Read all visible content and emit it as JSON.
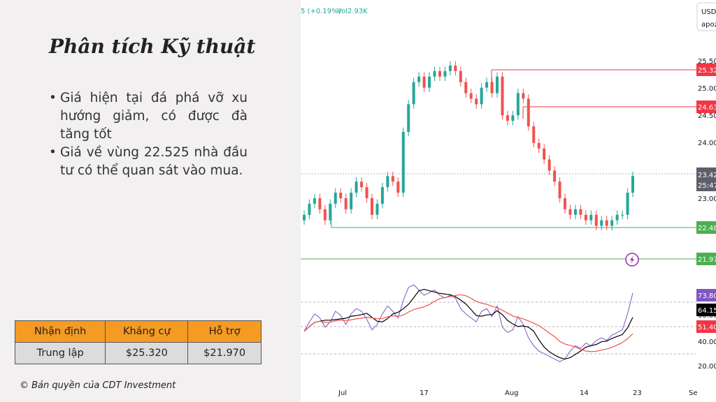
{
  "slide": {
    "title": "Phân tích Kỹ thuật",
    "bullets": [
      "Giá hiện tại đá phá vỡ xu hướng giảm, có được đà tăng tốt",
      "Giá về vùng 22.525 nhà đầu tư có thể quan sát vào mua."
    ],
    "copyright": "© Bản quyền của CDT Investment"
  },
  "summary_table": {
    "headers": [
      "Nhận định",
      "Kháng cự",
      "Hỗ trợ"
    ],
    "row": [
      "Trung lập",
      "$25.320",
      "$21.970"
    ]
  },
  "chart_header": {
    "change": "5 (+0.19%)",
    "volume": "Vol2.93K",
    "currency": "USD",
    "currency_sub": "apoz"
  },
  "colors": {
    "up": "#26a69a",
    "down": "#ef5350",
    "resistance_line": "#f23645",
    "support_line": "#4caf50",
    "rsi_line": "#7e57c2",
    "rsi_ma": "#000000",
    "rsi_ma_slow": "#ef5350",
    "header_bg": "#f59a23"
  },
  "chart_data": {
    "type": "line",
    "price_axis_ticks": [
      "25.50",
      "25.00",
      "24.50",
      "24.00",
      "23.00"
    ],
    "price_levels": [
      {
        "label": "25.32",
        "value": 25.32,
        "kind": "resistance"
      },
      {
        "label": "24.63",
        "value": 24.63,
        "kind": "resistance"
      },
      {
        "label": "23.42",
        "value": 23.42,
        "kind": "last"
      },
      {
        "label": "25:47",
        "value": 23.28,
        "kind": "countdown"
      },
      {
        "label": "22.48",
        "value": 22.48,
        "kind": "support"
      },
      {
        "label": "21.97",
        "value": 21.97,
        "kind": "support"
      }
    ],
    "rsi_axis_ticks": [
      "60.00",
      "40.00",
      "20.00"
    ],
    "rsi_levels": [
      {
        "label": "73.80",
        "value": 73.8,
        "kind": "rsi"
      },
      {
        "label": "64.15",
        "value": 64.15,
        "kind": "ma"
      },
      {
        "label": "51.40",
        "value": 51.4,
        "kind": "ma_slow"
      }
    ],
    "x_ticks": [
      "Jul",
      "17",
      "Aug",
      "14",
      "23",
      "Se"
    ],
    "price_series": [
      22.7,
      22.9,
      23.0,
      22.8,
      22.6,
      22.9,
      23.1,
      23.0,
      22.8,
      23.1,
      23.3,
      23.2,
      23.0,
      22.7,
      22.9,
      23.2,
      23.4,
      23.3,
      23.1,
      24.2,
      24.7,
      25.1,
      25.2,
      25.0,
      25.2,
      25.3,
      25.2,
      25.3,
      25.4,
      25.3,
      25.1,
      24.9,
      24.8,
      24.7,
      25.0,
      25.1,
      24.9,
      25.2,
      24.5,
      24.4,
      24.5,
      24.9,
      24.8,
      24.3,
      24.0,
      23.9,
      23.7,
      23.5,
      23.3,
      23.0,
      22.8,
      22.7,
      22.8,
      22.7,
      22.6,
      22.7,
      22.5,
      22.6,
      22.5,
      22.6,
      22.7,
      22.7,
      23.1,
      23.4
    ],
    "rsi_series": [
      45,
      52,
      58,
      55,
      48,
      52,
      60,
      57,
      50,
      58,
      62,
      60,
      54,
      46,
      50,
      58,
      64,
      60,
      55,
      68,
      78,
      80,
      76,
      72,
      74,
      76,
      72,
      70,
      72,
      70,
      62,
      58,
      55,
      52,
      60,
      62,
      56,
      64,
      48,
      44,
      46,
      56,
      50,
      40,
      34,
      30,
      28,
      26,
      24,
      22,
      24,
      30,
      34,
      32,
      36,
      34,
      38,
      40,
      38,
      42,
      44,
      46,
      58,
      73.8
    ]
  }
}
